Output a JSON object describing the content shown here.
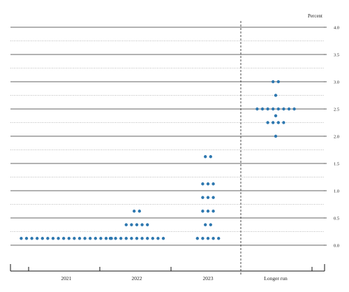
{
  "chart_data": {
    "type": "scatter",
    "title": "",
    "ylabel": "Percent",
    "xlabel": "",
    "ylim": [
      -0.125,
      4.0
    ],
    "y_ticks": [
      {
        "value": 4.0,
        "label": "4.0"
      },
      {
        "value": 3.5,
        "label": "3.5"
      },
      {
        "value": 3.0,
        "label": "3.0"
      },
      {
        "value": 2.5,
        "label": "2.5"
      },
      {
        "value": 2.0,
        "label": "2.0"
      },
      {
        "value": 1.5,
        "label": "1.5"
      },
      {
        "value": 1.0,
        "label": "1.0"
      },
      {
        "value": 0.5,
        "label": "0.5"
      },
      {
        "value": 0.0,
        "label": "0.0"
      }
    ],
    "minor_gridline_step": 0.25,
    "grid": true,
    "categories": [
      "2021",
      "2022",
      "2023",
      "Longer run"
    ],
    "separator_before": "Longer run",
    "dot_color": "#2e78b0",
    "series": [
      {
        "category": "2021",
        "points": [
          {
            "y": 0.125,
            "count": 18
          }
        ]
      },
      {
        "category": "2022",
        "points": [
          {
            "y": 0.625,
            "count": 2
          },
          {
            "y": 0.375,
            "count": 5
          },
          {
            "y": 0.125,
            "count": 11
          }
        ]
      },
      {
        "category": "2023",
        "points": [
          {
            "y": 1.625,
            "count": 2
          },
          {
            "y": 1.125,
            "count": 3
          },
          {
            "y": 0.875,
            "count": 3
          },
          {
            "y": 0.625,
            "count": 3
          },
          {
            "y": 0.375,
            "count": 2
          },
          {
            "y": 0.125,
            "count": 5
          }
        ]
      },
      {
        "category": "Longer run",
        "points": [
          {
            "y": 3.0,
            "count": 2
          },
          {
            "y": 2.75,
            "count": 1
          },
          {
            "y": 2.5,
            "count": 8
          },
          {
            "y": 2.375,
            "count": 1
          },
          {
            "y": 2.25,
            "count": 4
          },
          {
            "y": 2.0,
            "count": 1
          }
        ]
      }
    ]
  }
}
